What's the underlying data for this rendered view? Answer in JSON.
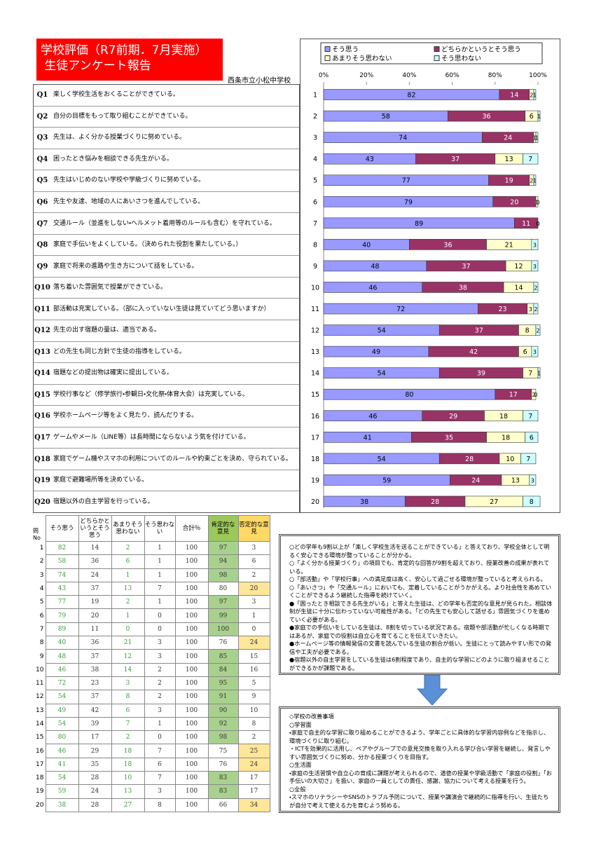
{
  "header": {
    "title_line1": "学校評価（R7前期．7月実施）",
    "title_line2": " 生徒アンケート報告",
    "school": "西条市立小松中学校"
  },
  "questions": [
    {
      "id": "Q1",
      "text": "楽しく学校生活をおくることができている。"
    },
    {
      "id": "Q2",
      "text": "自分の目標をもって取り組むことができている。"
    },
    {
      "id": "Q3",
      "text": "先生は、よく分かる授業づくりに努めている。"
    },
    {
      "id": "Q4",
      "text": "困ったとき悩みを相談できる先生がいる。"
    },
    {
      "id": "Q5",
      "text": "先生はいじめのない学校や学級づくりに努めている。"
    },
    {
      "id": "Q6",
      "text": "先生や友達、地域の人にあいさつを進んでしている。"
    },
    {
      "id": "Q7",
      "text": "交通ルール（並進をしない・ヘルメット着用等のルールも含む）を守れている。"
    },
    {
      "id": "Q8",
      "text": "家庭で手伝いをよくしている。（決められた役割を果たしている。）"
    },
    {
      "id": "Q9",
      "text": "家庭で将来の進路や生き方について話をしている。"
    },
    {
      "id": "Q10",
      "text": "落ち着いた雰囲気で授業ができている。"
    },
    {
      "id": "Q11",
      "text": "部活動は充実している。（部に入っていない生徒は見ていてどう思いますか）"
    },
    {
      "id": "Q12",
      "text": "先生の出す宿題の量は、適当である。"
    },
    {
      "id": "Q13",
      "text": "どの先生も同じ方針で生徒の指導をしている。"
    },
    {
      "id": "Q14",
      "text": "宿題などの提出物は確実に提出している。"
    },
    {
      "id": "Q15",
      "text": "学校行事など（修学旅行・参観日・文化祭・体育大会）は充実している。"
    },
    {
      "id": "Q16",
      "text": "学校ホームページ等をよく見たり、読んだりする。"
    },
    {
      "id": "Q17",
      "text": "ゲームやメール（LINE等）は長時間にならないよう気を付けている。"
    },
    {
      "id": "Q18",
      "text": "家庭でゲーム機やスマホの利用についてのルールや約束ごとを決め、守られている。"
    },
    {
      "id": "Q19",
      "text": "家庭で避難場所等を決めている。"
    },
    {
      "id": "Q20",
      "text": "宿題以外の自主学習を行っている。"
    }
  ],
  "chart_data": {
    "type": "bar",
    "orientation": "horizontal",
    "stacked": true,
    "categories": [
      "1",
      "2",
      "3",
      "4",
      "5",
      "6",
      "7",
      "8",
      "9",
      "10",
      "11",
      "12",
      "13",
      "14",
      "15",
      "16",
      "17",
      "18",
      "19",
      "20"
    ],
    "series": [
      {
        "name": "そう思う",
        "color": "#9999ff",
        "values": [
          82,
          58,
          74,
          43,
          77,
          79,
          89,
          40,
          48,
          46,
          72,
          54,
          49,
          54,
          80,
          46,
          41,
          54,
          59,
          38
        ]
      },
      {
        "name": "どちらかというとそう思う",
        "color": "#993366",
        "values": [
          14,
          36,
          24,
          37,
          19,
          20,
          11,
          36,
          37,
          38,
          23,
          37,
          42,
          39,
          17,
          29,
          35,
          28,
          24,
          28
        ]
      },
      {
        "name": "あまりそう思わない",
        "color": "#ffffcc",
        "values": [
          2,
          6,
          1,
          13,
          2,
          1,
          0,
          21,
          12,
          14,
          3,
          8,
          6,
          7,
          2,
          18,
          18,
          10,
          13,
          27
        ]
      },
      {
        "name": "そう思わない",
        "color": "#ccffff",
        "values": [
          1,
          1,
          1,
          7,
          1,
          0,
          0,
          3,
          3,
          2,
          2,
          2,
          3,
          1,
          0,
          7,
          6,
          7,
          3,
          8
        ]
      }
    ],
    "xlim": [
      0,
      100
    ],
    "xticks": [
      {
        "value": 0,
        "label": "0%"
      },
      {
        "value": 20,
        "label": "20%"
      },
      {
        "value": 40,
        "label": "40%"
      },
      {
        "value": 60,
        "label": "60%"
      },
      {
        "value": 80,
        "label": "80%"
      },
      {
        "value": 100,
        "label": "100%"
      }
    ],
    "legend": "top"
  },
  "table": {
    "corner": "問No",
    "columns": [
      "そう思う",
      "どちらかというとそう思う",
      "あまりそう思わない",
      "そう思わない",
      "合計％",
      "肯定的な意見",
      "否定的な意見"
    ],
    "rows": [
      {
        "no": 1,
        "cells": [
          82,
          14,
          2,
          1,
          100,
          97,
          3
        ]
      },
      {
        "no": 2,
        "cells": [
          58,
          36,
          6,
          1,
          100,
          94,
          6
        ]
      },
      {
        "no": 3,
        "cells": [
          74,
          24,
          1,
          1,
          100,
          98,
          2
        ]
      },
      {
        "no": 4,
        "cells": [
          43,
          37,
          13,
          7,
          100,
          80,
          20
        ]
      },
      {
        "no": 5,
        "cells": [
          77,
          19,
          2,
          1,
          100,
          97,
          3
        ]
      },
      {
        "no": 6,
        "cells": [
          79,
          20,
          1,
          0,
          100,
          99,
          1
        ]
      },
      {
        "no": 7,
        "cells": [
          89,
          11,
          0,
          0,
          100,
          100,
          0
        ]
      },
      {
        "no": 8,
        "cells": [
          40,
          36,
          21,
          3,
          100,
          76,
          24
        ]
      },
      {
        "no": 9,
        "cells": [
          48,
          37,
          12,
          3,
          100,
          85,
          15
        ]
      },
      {
        "no": 10,
        "cells": [
          46,
          38,
          14,
          2,
          100,
          84,
          16
        ]
      },
      {
        "no": 11,
        "cells": [
          72,
          23,
          3,
          2,
          100,
          95,
          5
        ]
      },
      {
        "no": 12,
        "cells": [
          54,
          37,
          8,
          2,
          100,
          91,
          9
        ]
      },
      {
        "no": 13,
        "cells": [
          49,
          42,
          6,
          3,
          100,
          90,
          10
        ]
      },
      {
        "no": 14,
        "cells": [
          54,
          39,
          7,
          1,
          100,
          92,
          8
        ]
      },
      {
        "no": 15,
        "cells": [
          80,
          17,
          2,
          0,
          100,
          98,
          2
        ]
      },
      {
        "no": 16,
        "cells": [
          46,
          29,
          18,
          7,
          100,
          75,
          25
        ]
      },
      {
        "no": 17,
        "cells": [
          41,
          35,
          18,
          6,
          100,
          76,
          24
        ]
      },
      {
        "no": 18,
        "cells": [
          54,
          28,
          10,
          7,
          100,
          83,
          17
        ]
      },
      {
        "no": 19,
        "cells": [
          59,
          24,
          13,
          3,
          100,
          83,
          17
        ]
      },
      {
        "no": 20,
        "cells": [
          38,
          28,
          27,
          8,
          100,
          66,
          34
        ]
      }
    ]
  },
  "notes": [
    "○どの学年も9割以上が「楽しく学校生活を送ることができている」と答えており、学校全体として明るく安心できる環境が整っていることが分かる。",
    "○「よく分かる授業づくり」の項目でも、肯定的な回答が9割を超えており、授業改善の成果が表れている。",
    "○「部活動」や「学校行事」への満足度は高く、安心して過ごせる環境が整っていると考えられる。",
    "○「あいさつ」や「交通ルール」においても、定着していることがうかがえる。より社会性を高めていくことができるよう継続した指導を続けていく。",
    "●「困ったとき相談できる先生がいる」と答えた生徒は、どの学年も否定的な意見が見られた。相談体制が生徒に十分に伝わっていない可能性がある。「どの先生でも安心して話せる」雰囲気づくりを進めていく必要がある。",
    "●家庭での手伝いをしている生徒は、8割を切っている状況である。宿題や部活動が忙しくなる時期ではあるが、家庭での役割は自立心を育てることを伝えていきたい。",
    "●ホームページ等の情報発信の文書を読んでいる生徒の割合が低い。生徒にとって読みやすい形での発信や工夫が必要である。",
    "●宿題以外の自主学習をしている生徒は6割程度であり、自主的な学習にどのように取り組ませることができるかが課題である。"
  ],
  "improvements": [
    "◇学校の改善事項",
    "○学習面",
    "・家庭で自主的な学習に取り組めることができるよう、学年ごとに具体的な学習内容例などを指示し、環境づくりに取り組む。",
    "・ICTを効果的に活用し、ペアやグループでの意見交換を取り入れる学び合い学習を継続し、発言しやすい雰囲気づくりに努め、分かる授業づくりを目指す。",
    "○生活面",
    "・家庭の生活習慣や自立心の育成に課題が考えられるので、道徳の授業や学級活動で「家庭の役割」「お手伝いの大切さ」を扱い、家庭の一員としての責任、感謝、協力について考える授業を行う。",
    "○全般",
    "・スマホのリテラシーやSNSのトラブル予防について、授業や講演会で継続的に指導を行い、生徒たちが自分で考えて使える力を育むよう努める。"
  ]
}
